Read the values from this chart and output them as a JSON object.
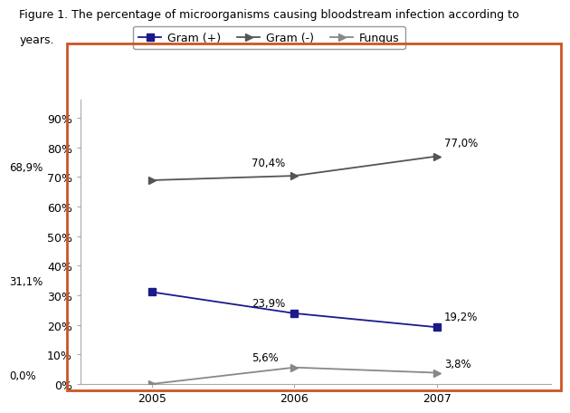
{
  "title_line1": "Figure 1. The percentage of microorganisms causing bloodstream infection according to",
  "title_line2": "years.",
  "years": [
    2005,
    2006,
    2007
  ],
  "series": [
    {
      "label": "Gram (+)",
      "values": [
        0.311,
        0.239,
        0.192
      ],
      "color": "#1a1a8c",
      "marker": "s",
      "markersize": 6,
      "linewidth": 1.3,
      "linestyle": "-"
    },
    {
      "label": "Gram (-)",
      "values": [
        0.689,
        0.704,
        0.77
      ],
      "color": "#555555",
      "marker": "4",
      "markersize": 8,
      "linewidth": 1.3,
      "linestyle": "-"
    },
    {
      "label": "Fungus",
      "values": [
        0.0,
        0.056,
        0.038
      ],
      "color": "#888888",
      "marker": "4",
      "markersize": 8,
      "linewidth": 1.3,
      "linestyle": "-"
    }
  ],
  "annotations": [
    {
      "series": 1,
      "xi": 0,
      "text": "68,9%",
      "ha": "left",
      "va": "bottom",
      "xoff": -1.0,
      "yoff": 0.025
    },
    {
      "series": 1,
      "xi": 1,
      "text": "70,4%",
      "ha": "left",
      "va": "bottom",
      "xoff": -0.3,
      "yoff": 0.025
    },
    {
      "series": 1,
      "xi": 2,
      "text": "77,0%",
      "ha": "left",
      "va": "bottom",
      "xoff": 0.05,
      "yoff": 0.025
    },
    {
      "series": 0,
      "xi": 0,
      "text": "31,1%",
      "ha": "left",
      "va": "bottom",
      "xoff": -1.0,
      "yoff": 0.015
    },
    {
      "series": 0,
      "xi": 1,
      "text": "23,9%",
      "ha": "left",
      "va": "bottom",
      "xoff": -0.3,
      "yoff": 0.015
    },
    {
      "series": 0,
      "xi": 2,
      "text": "19,2%",
      "ha": "left",
      "va": "bottom",
      "xoff": 0.05,
      "yoff": 0.015
    },
    {
      "series": 2,
      "xi": 0,
      "text": "0,0%",
      "ha": "left",
      "va": "bottom",
      "xoff": -1.0,
      "yoff": 0.01
    },
    {
      "series": 2,
      "xi": 1,
      "text": "5,6%",
      "ha": "left",
      "va": "bottom",
      "xoff": -0.3,
      "yoff": 0.015
    },
    {
      "series": 2,
      "xi": 2,
      "text": "3,8%",
      "ha": "left",
      "va": "bottom",
      "xoff": 0.05,
      "yoff": 0.01
    }
  ],
  "ylim": [
    0,
    0.96
  ],
  "yticks": [
    0.0,
    0.1,
    0.2,
    0.3,
    0.4,
    0.5,
    0.6,
    0.7,
    0.8,
    0.9
  ],
  "ytick_labels": [
    "0%",
    "10%",
    "20%",
    "30%",
    "40%",
    "50%",
    "60%",
    "70%",
    "80%",
    "90%"
  ],
  "background_color": "#ffffff",
  "border_color": "#cc5522",
  "title_fontsize": 9,
  "axis_fontsize": 9,
  "annotation_fontsize": 8.5,
  "legend_fontsize": 9
}
